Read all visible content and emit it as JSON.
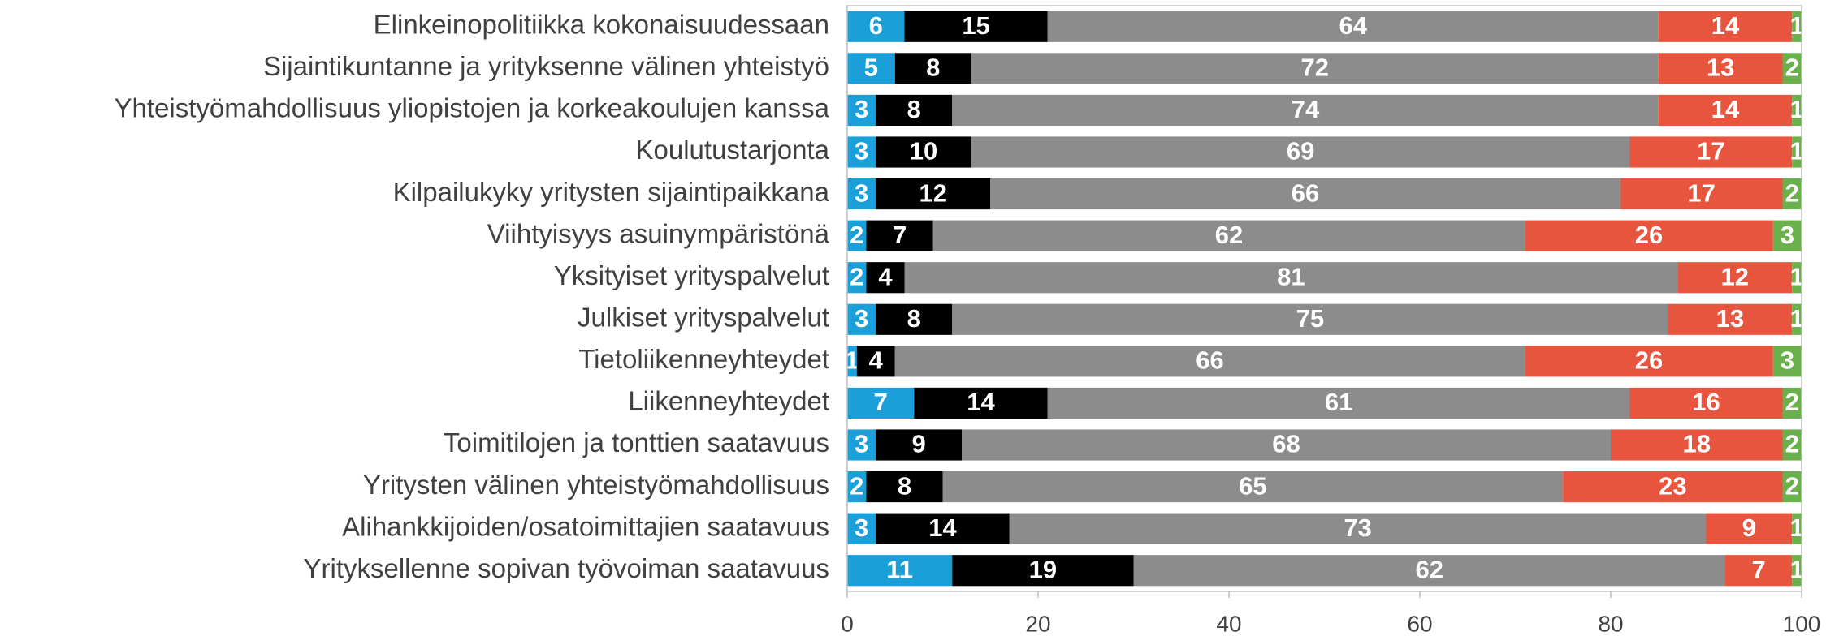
{
  "chart_data": {
    "type": "stacked_barh",
    "categories": [
      "Elinkeinopolitiikka kokonaisuudessaan",
      "Sijaintikuntanne ja yrityksenne välinen yhteistyö",
      "Yhteistyömahdollisuus yliopistojen ja korkeakoulujen kanssa",
      "Koulutustarjonta",
      "Kilpailukyky yritysten sijaintipaikkana",
      "Viihtyisyys asuinympäristönä",
      "Yksityiset yrityspalvelut",
      "Julkiset yrityspalvelut",
      "Tietoliikenneyhteydet",
      "Liikenneyhteydet",
      "Toimitilojen ja tonttien saatavuus",
      "Yritysten välinen yhteistyömahdollisuus",
      "Alihankkijoiden/osatoimittajien saatavuus",
      "Yrityksellenne sopivan työvoiman saatavuus"
    ],
    "series": [
      {
        "color": "#1a9fd8",
        "values": [
          6,
          5,
          3,
          3,
          3,
          2,
          2,
          3,
          1,
          7,
          3,
          2,
          3,
          11
        ]
      },
      {
        "color": "#000000",
        "values": [
          15,
          8,
          8,
          10,
          12,
          7,
          4,
          8,
          4,
          14,
          9,
          8,
          14,
          19
        ]
      },
      {
        "color": "#8c8c8c",
        "values": [
          64,
          72,
          74,
          69,
          66,
          62,
          81,
          75,
          66,
          61,
          68,
          65,
          73,
          62
        ]
      },
      {
        "color": "#e8553e",
        "values": [
          14,
          13,
          14,
          17,
          17,
          26,
          12,
          13,
          26,
          16,
          18,
          23,
          9,
          7
        ]
      },
      {
        "color": "#6ab04c",
        "values": [
          1,
          2,
          1,
          1,
          2,
          3,
          1,
          1,
          3,
          2,
          2,
          2,
          1,
          1
        ]
      }
    ],
    "xlim": [
      0,
      100
    ],
    "xticks": [
      0,
      20,
      40,
      60,
      80,
      100
    ]
  }
}
